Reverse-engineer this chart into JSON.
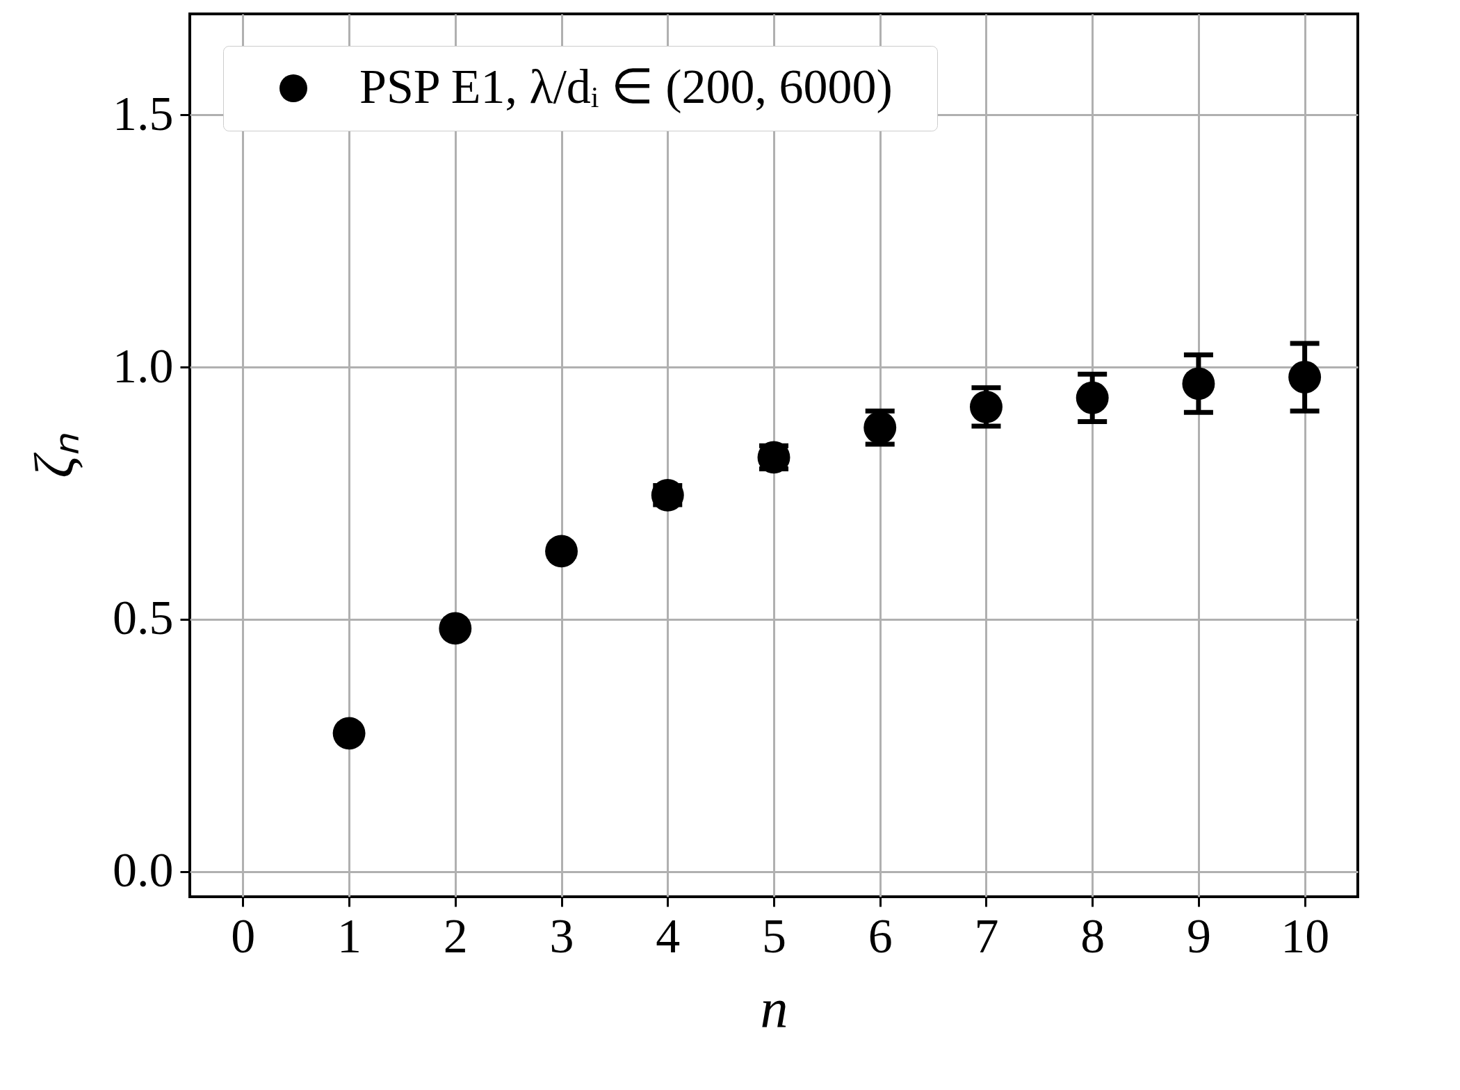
{
  "chart_data": {
    "type": "scatter",
    "xlabel": "n",
    "ylabel": "ζₙ",
    "x": [
      1,
      2,
      3,
      4,
      5,
      6,
      7,
      8,
      9,
      10
    ],
    "series": [
      {
        "name": "PSP E1,   λ/dᵢ ∈ (200, 6000)",
        "color": "#000000",
        "values": [
          0.274,
          0.482,
          0.635,
          0.746,
          0.821,
          0.88,
          0.921,
          0.939,
          0.967,
          0.98
        ],
        "errors": [
          0.005,
          0.008,
          0.01,
          0.019,
          0.023,
          0.033,
          0.038,
          0.047,
          0.057,
          0.067
        ]
      }
    ],
    "xlim": [
      -0.5,
      10.5
    ],
    "xticks": [
      0,
      1,
      2,
      3,
      4,
      5,
      6,
      7,
      8,
      9,
      10
    ],
    "ylim": [
      -0.05,
      1.7
    ],
    "yticks": [
      {
        "value": 0,
        "label": "0.0"
      },
      {
        "value": 0.5,
        "label": "0.5"
      },
      {
        "value": 1,
        "label": "1.0"
      },
      {
        "value": 1.5,
        "label": "1.5"
      }
    ],
    "grid": true,
    "legend": "top",
    "marker": "circle"
  }
}
